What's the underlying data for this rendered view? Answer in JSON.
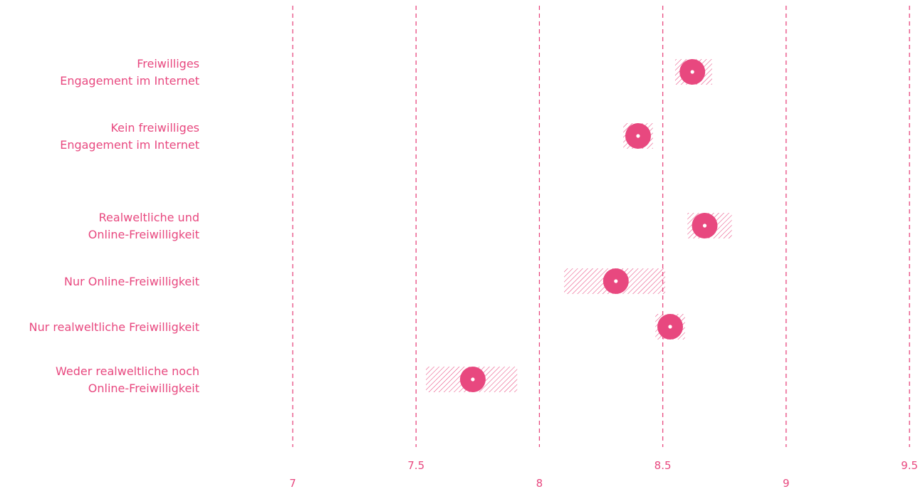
{
  "chart_data": {
    "type": "scatter",
    "variant": "dot-with-confidence-interval",
    "title": "",
    "xlabel": "",
    "ylabel": "",
    "xlim": [
      7,
      9.5
    ],
    "x_ticks": [
      7,
      7.5,
      8,
      8.5,
      9,
      9.5
    ],
    "x_tick_labels": [
      "7",
      "7.5",
      "8",
      "8.5",
      "9",
      "9.5"
    ],
    "grid": "vertical dashed lines at each x tick",
    "legend": "none",
    "categories": [
      "Freiwilliges Engagement im Internet",
      "Kein freiwilliges Engagement im Internet",
      "Realweltliche und Online-Freiwilligkeit",
      "Nur Online-Freiwilligkeit",
      "Nur realweltliche Freiwilligkeit",
      "Weder realweltliche noch Online-Freiwilligkeit"
    ],
    "category_label_lines": [
      [
        "Freiwilliges",
        "Engagement im Internet"
      ],
      [
        "Kein freiwilliges",
        "Engagement im Internet"
      ],
      [
        "Realweltliche und",
        "Online-Freiwilligkeit"
      ],
      [
        "Nur Online-Freiwilligkeit"
      ],
      [
        "Nur realweltliche Freiwilligkeit"
      ],
      [
        "Weder realweltliche noch",
        "Online-Freiwilligkeit"
      ]
    ],
    "series": [
      {
        "values": [
          8.62,
          8.4,
          8.67,
          8.31,
          8.53,
          7.73
        ],
        "ci_low": [
          8.55,
          8.34,
          8.6,
          8.1,
          8.47,
          7.54
        ],
        "ci_high": [
          8.7,
          8.46,
          8.78,
          8.51,
          8.59,
          7.91
        ]
      }
    ],
    "colors": {
      "accent": "#e8487f",
      "grid": "#e8487f",
      "label": "#e8487f"
    }
  }
}
